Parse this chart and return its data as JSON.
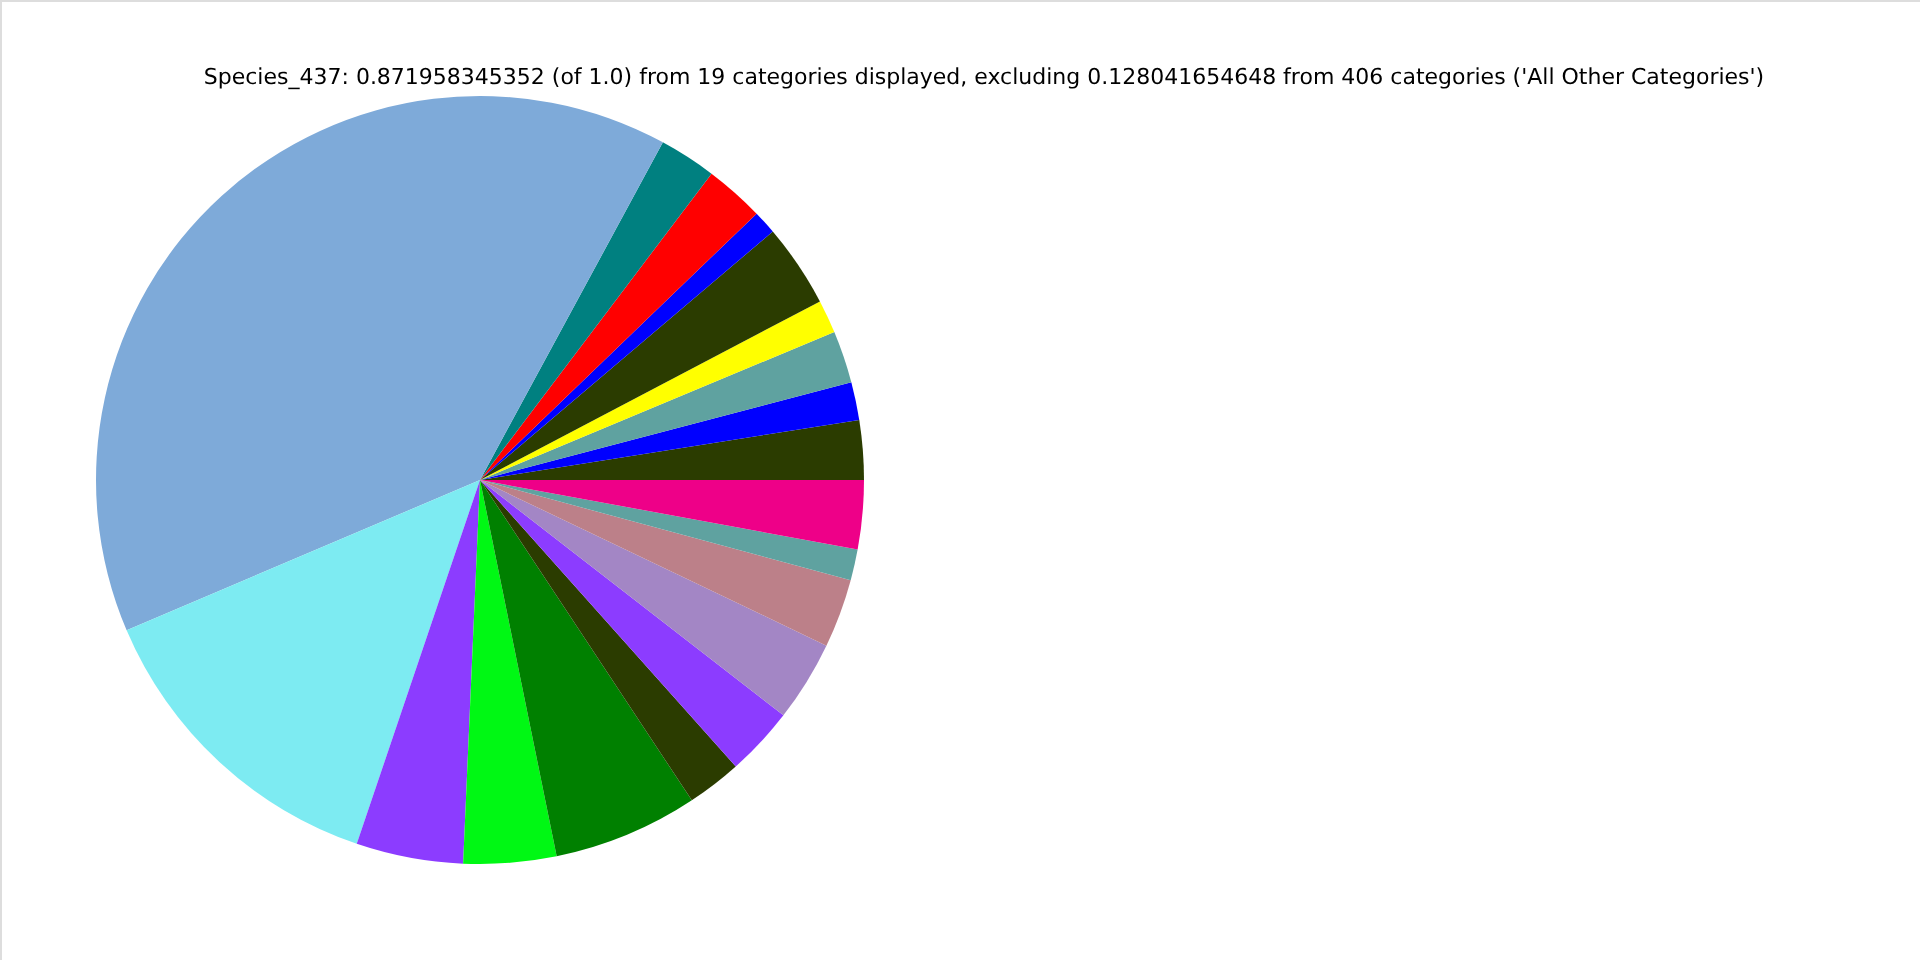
{
  "chart_data": {
    "type": "pie",
    "title": "Species_437: 0.871958345352 (of 1.0) from 19 categories displayed, excluding 0.128041654648 from 406 categories ('All Other Categories')",
    "categories": [
      null,
      null,
      null,
      null,
      null,
      null,
      null,
      null,
      null,
      null,
      null,
      null,
      null,
      null,
      null,
      null,
      null,
      null,
      null
    ],
    "values": [
      2.5,
      1.6,
      2.2,
      1.4,
      3.5,
      1.0,
      2.5,
      2.4,
      39.3,
      13.4,
      4.5,
      3.9,
      6.1,
      2.3,
      2.9,
      3.4,
      2.9,
      1.3,
      2.9
    ],
    "colors": [
      "#2b3c00",
      "#0000ff",
      "#5fa2a0",
      "#ffff00",
      "#2b3c00",
      "#0000ff",
      "#ff0000",
      "#008080",
      "#7eaad9",
      "#7debf2",
      "#8c3cff",
      "#00f814",
      "#008000",
      "#2b3c00",
      "#8c3cff",
      "#a386c5",
      "#bc8089",
      "#5fa2a0",
      "#ee0088"
    ]
  }
}
